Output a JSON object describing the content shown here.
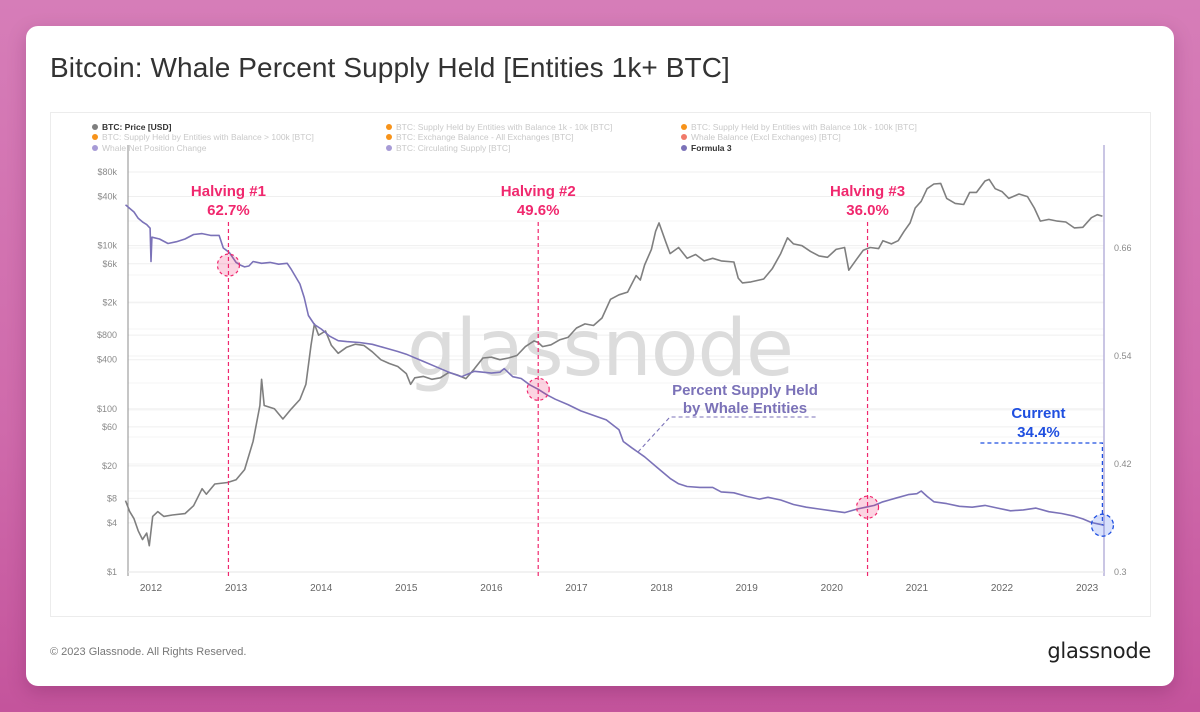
{
  "page": {
    "title": "Bitcoin: Whale Percent Supply Held [Entities 1k+ BTC]",
    "footer_copyright": "© 2023 Glassnode. All Rights Reserved.",
    "footer_logo": "glassnode",
    "watermark": "glassnode",
    "colors": {
      "background": "#d274b3",
      "price_line": "#7f7f7f",
      "whale_line": "#7b72b8",
      "halving_accent": "#f0286e",
      "current_accent": "#1f4fe0",
      "legend_orange": "#f7931a",
      "legend_salmon": "#f07a6a",
      "legend_purple": "#a79bd6"
    }
  },
  "chart_data": {
    "type": "line",
    "title": "Bitcoin: Whale Percent Supply Held [Entities 1k+ BTC]",
    "xlabel": "",
    "ylabel_left": "BTC: Price [USD]",
    "ylabel_right": "Formula 3",
    "x_range": [
      2011.7,
      2023.25
    ],
    "y_left_scale": "log",
    "y_left_range": [
      1,
      80000
    ],
    "y_right_range": [
      0.3,
      0.71
    ],
    "x_ticks": [
      "2012",
      "2013",
      "2014",
      "2015",
      "2016",
      "2017",
      "2018",
      "2019",
      "2020",
      "2021",
      "2022",
      "2023"
    ],
    "y_left_ticks": [
      {
        "value": 80000,
        "label": "$80k"
      },
      {
        "value": 40000,
        "label": "$40k"
      },
      {
        "value": 10000,
        "label": "$10k"
      },
      {
        "value": 6000,
        "label": "$6k"
      },
      {
        "value": 2000,
        "label": "$2k"
      },
      {
        "value": 800,
        "label": "$800"
      },
      {
        "value": 400,
        "label": "$400"
      },
      {
        "value": 100,
        "label": "$100"
      },
      {
        "value": 60,
        "label": "$60"
      },
      {
        "value": 20,
        "label": "$20"
      },
      {
        "value": 8,
        "label": "$8"
      },
      {
        "value": 4,
        "label": "$4"
      },
      {
        "value": 1,
        "label": "$1"
      }
    ],
    "y_right_ticks": [
      {
        "value": 0.66,
        "label": "0.66"
      },
      {
        "value": 0.54,
        "label": "0.54"
      },
      {
        "value": 0.42,
        "label": "0.42"
      },
      {
        "value": 0.3,
        "label": "0.3"
      }
    ],
    "grid": true,
    "legend_position": "top-left",
    "legend": [
      {
        "label": "BTC: Price [USD]",
        "color": "#7f7f7f",
        "active": true
      },
      {
        "label": "BTC: Supply Held by Entities with Balance 1k - 10k [BTC]",
        "color": "#f7931a",
        "active": false
      },
      {
        "label": "BTC: Supply Held by Entities with Balance 10k - 100k [BTC]",
        "color": "#f7931a",
        "active": false
      },
      {
        "label": "BTC: Supply Held by Entities with Balance > 100k [BTC]",
        "color": "#f7931a",
        "active": false
      },
      {
        "label": "BTC: Exchange Balance - All Exchanges [BTC]",
        "color": "#f7931a",
        "active": false
      },
      {
        "label": "Whale Balance (Excl Exchanges) [BTC]",
        "color": "#f07a6a",
        "active": false
      },
      {
        "label": "Whale Net Position Change",
        "color": "#a79bd6",
        "active": false
      },
      {
        "label": "BTC: Circulating Supply [BTC]",
        "color": "#a79bd6",
        "active": false
      },
      {
        "label": "Formula 3",
        "color": "#7b72b8",
        "active": true
      }
    ],
    "series": [
      {
        "name": "BTC: Price [USD]",
        "axis": "left",
        "color": "#7f7f7f",
        "points": [
          [
            2011.7,
            7.5
          ],
          [
            2011.75,
            5.5
          ],
          [
            2011.8,
            4.5
          ],
          [
            2011.85,
            3.2
          ],
          [
            2011.9,
            2.5
          ],
          [
            2011.95,
            3.0
          ],
          [
            2011.98,
            2.1
          ],
          [
            2012.02,
            4.8
          ],
          [
            2012.08,
            5.5
          ],
          [
            2012.15,
            4.8
          ],
          [
            2012.25,
            5.0
          ],
          [
            2012.4,
            5.2
          ],
          [
            2012.5,
            6.5
          ],
          [
            2012.6,
            10.5
          ],
          [
            2012.65,
            9.0
          ],
          [
            2012.75,
            12.0
          ],
          [
            2012.9,
            12.5
          ],
          [
            2013.0,
            13.5
          ],
          [
            2013.1,
            18
          ],
          [
            2013.2,
            40
          ],
          [
            2013.28,
            110
          ],
          [
            2013.3,
            230
          ],
          [
            2013.33,
            110
          ],
          [
            2013.45,
            100
          ],
          [
            2013.55,
            75
          ],
          [
            2013.65,
            100
          ],
          [
            2013.75,
            130
          ],
          [
            2013.82,
            200
          ],
          [
            2013.88,
            600
          ],
          [
            2013.92,
            1100
          ],
          [
            2013.97,
            800
          ],
          [
            2014.05,
            900
          ],
          [
            2014.12,
            600
          ],
          [
            2014.2,
            480
          ],
          [
            2014.3,
            570
          ],
          [
            2014.4,
            620
          ],
          [
            2014.5,
            600
          ],
          [
            2014.6,
            500
          ],
          [
            2014.7,
            400
          ],
          [
            2014.8,
            360
          ],
          [
            2014.9,
            330
          ],
          [
            2015.0,
            270
          ],
          [
            2015.05,
            200
          ],
          [
            2015.1,
            240
          ],
          [
            2015.2,
            250
          ],
          [
            2015.3,
            230
          ],
          [
            2015.4,
            240
          ],
          [
            2015.5,
            280
          ],
          [
            2015.6,
            260
          ],
          [
            2015.7,
            235
          ],
          [
            2015.8,
            310
          ],
          [
            2015.9,
            420
          ],
          [
            2016.0,
            430
          ],
          [
            2016.1,
            400
          ],
          [
            2016.2,
            420
          ],
          [
            2016.3,
            450
          ],
          [
            2016.4,
            580
          ],
          [
            2016.5,
            680
          ],
          [
            2016.55,
            650
          ],
          [
            2016.6,
            580
          ],
          [
            2016.7,
            610
          ],
          [
            2016.8,
            700
          ],
          [
            2016.9,
            750
          ],
          [
            2017.0,
            980
          ],
          [
            2017.1,
            1100
          ],
          [
            2017.2,
            1050
          ],
          [
            2017.3,
            1300
          ],
          [
            2017.4,
            2200
          ],
          [
            2017.5,
            2500
          ],
          [
            2017.6,
            2700
          ],
          [
            2017.7,
            4300
          ],
          [
            2017.75,
            3800
          ],
          [
            2017.8,
            5800
          ],
          [
            2017.88,
            9000
          ],
          [
            2017.93,
            15000
          ],
          [
            2017.97,
            19000
          ],
          [
            2018.05,
            11000
          ],
          [
            2018.1,
            8000
          ],
          [
            2018.2,
            9500
          ],
          [
            2018.3,
            7000
          ],
          [
            2018.4,
            7800
          ],
          [
            2018.5,
            6500
          ],
          [
            2018.6,
            7000
          ],
          [
            2018.7,
            6500
          ],
          [
            2018.85,
            6300
          ],
          [
            2018.9,
            4000
          ],
          [
            2018.95,
            3500
          ],
          [
            2019.05,
            3600
          ],
          [
            2019.2,
            3900
          ],
          [
            2019.3,
            5200
          ],
          [
            2019.4,
            8000
          ],
          [
            2019.48,
            12500
          ],
          [
            2019.55,
            10500
          ],
          [
            2019.65,
            10000
          ],
          [
            2019.75,
            8500
          ],
          [
            2019.85,
            7500
          ],
          [
            2019.95,
            7200
          ],
          [
            2020.05,
            9000
          ],
          [
            2020.15,
            9500
          ],
          [
            2020.2,
            5000
          ],
          [
            2020.3,
            7000
          ],
          [
            2020.37,
            8800
          ],
          [
            2020.45,
            9500
          ],
          [
            2020.55,
            9200
          ],
          [
            2020.6,
            11500
          ],
          [
            2020.7,
            10500
          ],
          [
            2020.78,
            11500
          ],
          [
            2020.85,
            15000
          ],
          [
            2020.92,
            19000
          ],
          [
            2020.98,
            29000
          ],
          [
            2021.05,
            35000
          ],
          [
            2021.12,
            50000
          ],
          [
            2021.2,
            57000
          ],
          [
            2021.28,
            58000
          ],
          [
            2021.35,
            38000
          ],
          [
            2021.45,
            33000
          ],
          [
            2021.55,
            32000
          ],
          [
            2021.62,
            45000
          ],
          [
            2021.7,
            45000
          ],
          [
            2021.8,
            62000
          ],
          [
            2021.85,
            65000
          ],
          [
            2021.92,
            50000
          ],
          [
            2022.0,
            46000
          ],
          [
            2022.08,
            38000
          ],
          [
            2022.2,
            43000
          ],
          [
            2022.3,
            40000
          ],
          [
            2022.38,
            29000
          ],
          [
            2022.45,
            20000
          ],
          [
            2022.55,
            21000
          ],
          [
            2022.65,
            20000
          ],
          [
            2022.75,
            19500
          ],
          [
            2022.85,
            16500
          ],
          [
            2022.95,
            16800
          ],
          [
            2023.05,
            22000
          ],
          [
            2023.12,
            24000
          ],
          [
            2023.18,
            23000
          ]
        ]
      },
      {
        "name": "Formula 3",
        "axis": "right",
        "color": "#7b72b8",
        "points": [
          [
            2011.7,
            0.708
          ],
          [
            2011.75,
            0.704
          ],
          [
            2011.8,
            0.7
          ],
          [
            2011.85,
            0.693
          ],
          [
            2011.9,
            0.689
          ],
          [
            2011.95,
            0.686
          ],
          [
            2011.99,
            0.682
          ],
          [
            2012.0,
            0.645
          ],
          [
            2012.01,
            0.672
          ],
          [
            2012.1,
            0.67
          ],
          [
            2012.2,
            0.665
          ],
          [
            2012.3,
            0.667
          ],
          [
            2012.4,
            0.67
          ],
          [
            2012.5,
            0.675
          ],
          [
            2012.6,
            0.676
          ],
          [
            2012.7,
            0.674
          ],
          [
            2012.8,
            0.674
          ],
          [
            2012.85,
            0.66
          ],
          [
            2012.92,
            0.655
          ],
          [
            2013.0,
            0.644
          ],
          [
            2013.05,
            0.641
          ],
          [
            2013.1,
            0.639
          ],
          [
            2013.15,
            0.64
          ],
          [
            2013.2,
            0.645
          ],
          [
            2013.3,
            0.643
          ],
          [
            2013.4,
            0.644
          ],
          [
            2013.5,
            0.642
          ],
          [
            2013.6,
            0.643
          ],
          [
            2013.65,
            0.636
          ],
          [
            2013.75,
            0.62
          ],
          [
            2013.8,
            0.605
          ],
          [
            2013.85,
            0.585
          ],
          [
            2013.92,
            0.575
          ],
          [
            2014.0,
            0.57
          ],
          [
            2014.1,
            0.562
          ],
          [
            2014.2,
            0.557
          ],
          [
            2014.3,
            0.556
          ],
          [
            2014.45,
            0.555
          ],
          [
            2014.6,
            0.553
          ],
          [
            2014.75,
            0.549
          ],
          [
            2014.9,
            0.545
          ],
          [
            2015.0,
            0.542
          ],
          [
            2015.1,
            0.538
          ],
          [
            2015.2,
            0.534
          ],
          [
            2015.35,
            0.528
          ],
          [
            2015.5,
            0.522
          ],
          [
            2015.65,
            0.517
          ],
          [
            2015.8,
            0.523
          ],
          [
            2015.9,
            0.522
          ],
          [
            2016.0,
            0.521
          ],
          [
            2016.1,
            0.522
          ],
          [
            2016.15,
            0.526
          ],
          [
            2016.25,
            0.517
          ],
          [
            2016.35,
            0.515
          ],
          [
            2016.45,
            0.508
          ],
          [
            2016.55,
            0.503
          ],
          [
            2016.65,
            0.497
          ],
          [
            2016.75,
            0.492
          ],
          [
            2016.9,
            0.486
          ],
          [
            2017.05,
            0.479
          ],
          [
            2017.2,
            0.474
          ],
          [
            2017.35,
            0.469
          ],
          [
            2017.5,
            0.458
          ],
          [
            2017.55,
            0.445
          ],
          [
            2017.65,
            0.438
          ],
          [
            2017.8,
            0.428
          ],
          [
            2017.95,
            0.416
          ],
          [
            2018.1,
            0.404
          ],
          [
            2018.2,
            0.398
          ],
          [
            2018.3,
            0.395
          ],
          [
            2018.45,
            0.394
          ],
          [
            2018.6,
            0.394
          ],
          [
            2018.7,
            0.389
          ],
          [
            2018.85,
            0.388
          ],
          [
            2019.0,
            0.384
          ],
          [
            2019.15,
            0.381
          ],
          [
            2019.25,
            0.383
          ],
          [
            2019.4,
            0.38
          ],
          [
            2019.55,
            0.375
          ],
          [
            2019.7,
            0.372
          ],
          [
            2019.85,
            0.37
          ],
          [
            2020.0,
            0.368
          ],
          [
            2020.15,
            0.366
          ],
          [
            2020.3,
            0.37
          ],
          [
            2020.4,
            0.372
          ],
          [
            2020.5,
            0.374
          ],
          [
            2020.6,
            0.378
          ],
          [
            2020.75,
            0.382
          ],
          [
            2020.9,
            0.386
          ],
          [
            2021.0,
            0.387
          ],
          [
            2021.05,
            0.39
          ],
          [
            2021.12,
            0.384
          ],
          [
            2021.2,
            0.378
          ],
          [
            2021.35,
            0.376
          ],
          [
            2021.5,
            0.373
          ],
          [
            2021.65,
            0.372
          ],
          [
            2021.8,
            0.374
          ],
          [
            2021.95,
            0.371
          ],
          [
            2022.1,
            0.368
          ],
          [
            2022.25,
            0.369
          ],
          [
            2022.4,
            0.371
          ],
          [
            2022.55,
            0.367
          ],
          [
            2022.7,
            0.365
          ],
          [
            2022.85,
            0.362
          ],
          [
            2022.95,
            0.359
          ],
          [
            2023.05,
            0.355
          ],
          [
            2023.15,
            0.353
          ],
          [
            2023.2,
            0.352
          ]
        ]
      }
    ],
    "annotations": [
      {
        "label": "Halving #1",
        "value_label": "62.7%",
        "x": 2012.91,
        "y_right": 0.641,
        "color": "#f0286e"
      },
      {
        "label": "Halving #2",
        "value_label": "49.6%",
        "x": 2016.55,
        "y_right": 0.503,
        "color": "#f0286e"
      },
      {
        "label": "Halving #3",
        "value_label": "36.0%",
        "x": 2020.42,
        "y_right": 0.372,
        "color": "#f0286e"
      },
      {
        "label": "Current",
        "value_label": "34.4%",
        "x": 2023.18,
        "y_right": 0.352,
        "color": "#1f4fe0"
      }
    ],
    "series_label": {
      "line1": "Percent Supply Held",
      "line2": "by Whale Entities",
      "color": "#7b72b8"
    }
  }
}
